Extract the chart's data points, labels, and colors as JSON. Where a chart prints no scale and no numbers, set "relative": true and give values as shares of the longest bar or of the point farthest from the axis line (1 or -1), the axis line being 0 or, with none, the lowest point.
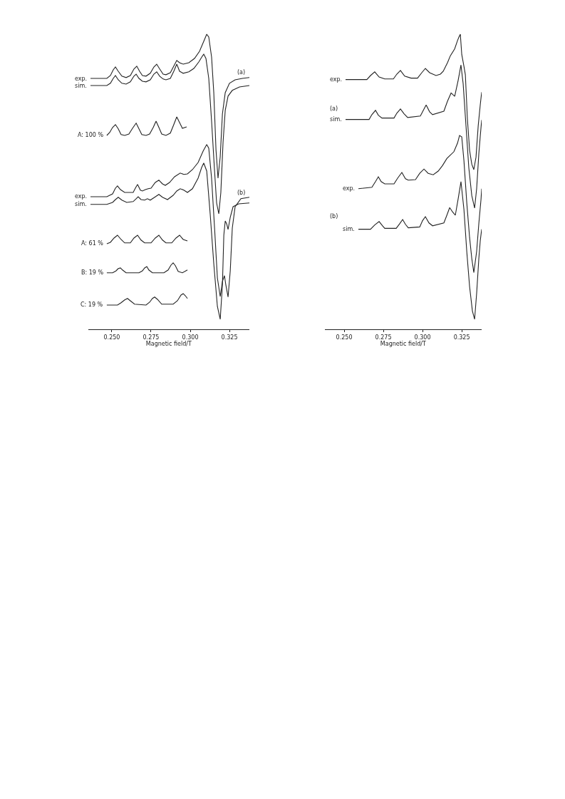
{
  "chart_data": [
    {
      "type": "line",
      "relative": true,
      "xlabel": "Magnetic field/T",
      "tick_labels": "x",
      "xlim": [
        0.2349,
        0.3377
      ],
      "xticks": [
        {
          "value": 0.25,
          "label": "0.250"
        },
        {
          "value": 0.275,
          "label": "0.275"
        },
        {
          "value": 0.3,
          "label": "0.300"
        },
        {
          "value": 0.325,
          "label": "0.325"
        }
      ],
      "annotations": [
        "(a)",
        "(b)"
      ],
      "series": [
        {
          "name": "exp.",
          "color": "#222222",
          "x": [
            0.2364,
            0.2468,
            0.2491,
            0.2509,
            0.2523,
            0.2541,
            0.2564,
            0.2591,
            0.2618,
            0.2641,
            0.2659,
            0.2677,
            0.2695,
            0.2718,
            0.2745,
            0.2768,
            0.2786,
            0.2805,
            0.2827,
            0.2845,
            0.2873,
            0.2895,
            0.2914,
            0.2932,
            0.2955,
            0.2991,
            0.3027,
            0.3059,
            0.3086,
            0.3105,
            0.3118,
            0.3136,
            0.315,
            0.3164,
            0.3177,
            0.3191,
            0.3205,
            0.3223,
            0.325,
            0.3286,
            0.3332,
            0.3377
          ],
          "values": [
            0.845,
            0.845,
            0.855,
            0.875,
            0.885,
            0.87,
            0.853,
            0.848,
            0.855,
            0.878,
            0.888,
            0.87,
            0.855,
            0.853,
            0.863,
            0.885,
            0.895,
            0.878,
            0.86,
            0.858,
            0.865,
            0.888,
            0.908,
            0.9,
            0.895,
            0.9,
            0.915,
            0.94,
            0.975,
            1.0,
            0.99,
            0.92,
            0.795,
            0.595,
            0.495,
            0.57,
            0.72,
            0.795,
            0.828,
            0.84,
            0.845,
            0.848
          ]
        },
        {
          "name": "sim.",
          "color": "#222222",
          "x": [
            0.2364,
            0.2468,
            0.2491,
            0.2509,
            0.2523,
            0.2541,
            0.2564,
            0.2591,
            0.2618,
            0.2641,
            0.2655,
            0.2673,
            0.2695,
            0.2718,
            0.2745,
            0.2768,
            0.2786,
            0.2805,
            0.2827,
            0.2845,
            0.2873,
            0.2895,
            0.2914,
            0.2932,
            0.2955,
            0.2991,
            0.3023,
            0.3055,
            0.3077,
            0.3086,
            0.31,
            0.3118,
            0.3136,
            0.3155,
            0.3168,
            0.3182,
            0.3195,
            0.3209,
            0.3223,
            0.3241,
            0.3268,
            0.3314,
            0.3377
          ],
          "values": [
            0.82,
            0.82,
            0.828,
            0.845,
            0.855,
            0.84,
            0.828,
            0.825,
            0.833,
            0.853,
            0.86,
            0.845,
            0.835,
            0.833,
            0.84,
            0.86,
            0.868,
            0.853,
            0.843,
            0.84,
            0.845,
            0.87,
            0.895,
            0.87,
            0.863,
            0.868,
            0.88,
            0.903,
            0.923,
            0.93,
            0.915,
            0.845,
            0.695,
            0.52,
            0.408,
            0.37,
            0.445,
            0.62,
            0.733,
            0.783,
            0.803,
            0.815,
            0.82
          ]
        },
        {
          "name": "A: 100 %",
          "color": "#222222",
          "x": [
            0.2468,
            0.2486,
            0.2505,
            0.2523,
            0.2541,
            0.2559,
            0.2582,
            0.2609,
            0.2632,
            0.2655,
            0.2673,
            0.2691,
            0.2718,
            0.2741,
            0.2764,
            0.2782,
            0.28,
            0.2818,
            0.2845,
            0.2873,
            0.2895,
            0.2914,
            0.2932,
            0.295,
            0.2977
          ],
          "values": [
            0.645,
            0.655,
            0.673,
            0.683,
            0.668,
            0.648,
            0.645,
            0.65,
            0.67,
            0.688,
            0.668,
            0.648,
            0.645,
            0.65,
            0.673,
            0.695,
            0.673,
            0.65,
            0.645,
            0.653,
            0.683,
            0.71,
            0.69,
            0.67,
            0.675
          ]
        },
        {
          "name": "exp.",
          "color": "#222222",
          "x": [
            0.2364,
            0.2468,
            0.2505,
            0.2523,
            0.2536,
            0.2555,
            0.2582,
            0.2636,
            0.265,
            0.2664,
            0.2682,
            0.2695,
            0.2714,
            0.2732,
            0.275,
            0.2777,
            0.28,
            0.2823,
            0.2841,
            0.2868,
            0.29,
            0.2936,
            0.2959,
            0.2982,
            0.3014,
            0.305,
            0.3082,
            0.3105,
            0.3118,
            0.3136,
            0.3155,
            0.3173,
            0.3191,
            0.3205,
            0.3218,
            0.3227,
            0.3241,
            0.3255,
            0.3268,
            0.3286,
            0.3323,
            0.3377
          ],
          "values": [
            0.43,
            0.43,
            0.44,
            0.46,
            0.468,
            0.455,
            0.445,
            0.445,
            0.46,
            0.473,
            0.453,
            0.45,
            0.455,
            0.458,
            0.46,
            0.48,
            0.488,
            0.475,
            0.47,
            0.48,
            0.5,
            0.513,
            0.508,
            0.51,
            0.525,
            0.55,
            0.59,
            0.613,
            0.6,
            0.495,
            0.32,
            0.145,
            0.08,
            0.133,
            0.153,
            0.12,
            0.078,
            0.17,
            0.32,
            0.395,
            0.423,
            0.428
          ]
        },
        {
          "name": "sim.",
          "color": "#222222",
          "x": [
            0.2364,
            0.2468,
            0.2505,
            0.2523,
            0.2541,
            0.2564,
            0.2595,
            0.2636,
            0.2655,
            0.2668,
            0.2686,
            0.2709,
            0.2727,
            0.2745,
            0.2773,
            0.28,
            0.2823,
            0.2855,
            0.2891,
            0.2914,
            0.2936,
            0.2959,
            0.2982,
            0.3014,
            0.305,
            0.3073,
            0.3086,
            0.3105,
            0.3127,
            0.315,
            0.3173,
            0.3191,
            0.3205,
            0.3214,
            0.3223,
            0.3232,
            0.3241,
            0.3255,
            0.3273,
            0.3309,
            0.3377
          ],
          "values": [
            0.403,
            0.403,
            0.41,
            0.42,
            0.428,
            0.418,
            0.41,
            0.413,
            0.423,
            0.43,
            0.42,
            0.418,
            0.423,
            0.418,
            0.428,
            0.438,
            0.428,
            0.42,
            0.435,
            0.45,
            0.458,
            0.453,
            0.445,
            0.458,
            0.495,
            0.533,
            0.548,
            0.52,
            0.37,
            0.195,
            0.045,
            0,
            0.12,
            0.295,
            0.345,
            0.335,
            0.315,
            0.358,
            0.395,
            0.405,
            0.408
          ]
        },
        {
          "name": "A: 61 %",
          "color": "#222222",
          "x": [
            0.2468,
            0.2491,
            0.2514,
            0.2536,
            0.2559,
            0.2582,
            0.2618,
            0.2641,
            0.2664,
            0.2686,
            0.2709,
            0.275,
            0.2777,
            0.28,
            0.2823,
            0.2845,
            0.2882,
            0.2909,
            0.2932,
            0.2955,
            0.2982
          ],
          "values": [
            0.265,
            0.27,
            0.285,
            0.295,
            0.28,
            0.268,
            0.268,
            0.285,
            0.295,
            0.278,
            0.268,
            0.268,
            0.285,
            0.295,
            0.278,
            0.268,
            0.268,
            0.285,
            0.295,
            0.28,
            0.275
          ]
        },
        {
          "name": "B: 19 %",
          "color": "#222222",
          "x": [
            0.2468,
            0.2505,
            0.2527,
            0.2541,
            0.2555,
            0.2568,
            0.2591,
            0.2673,
            0.2695,
            0.2709,
            0.2723,
            0.2736,
            0.2759,
            0.2832,
            0.2859,
            0.2877,
            0.2891,
            0.2905,
            0.2923,
            0.295,
            0.2982
          ],
          "values": [
            0.163,
            0.163,
            0.17,
            0.178,
            0.18,
            0.173,
            0.163,
            0.163,
            0.17,
            0.18,
            0.185,
            0.173,
            0.163,
            0.163,
            0.173,
            0.19,
            0.198,
            0.188,
            0.168,
            0.163,
            0.173
          ]
        },
        {
          "name": "C: 19 %",
          "color": "#222222",
          "x": [
            0.2468,
            0.2536,
            0.2559,
            0.2582,
            0.26,
            0.2618,
            0.2645,
            0.2718,
            0.2741,
            0.2759,
            0.2773,
            0.2791,
            0.2818,
            0.2891,
            0.2918,
            0.2941,
            0.2955,
            0.2968,
            0.2982
          ],
          "values": [
            0.05,
            0.05,
            0.058,
            0.068,
            0.073,
            0.065,
            0.053,
            0.05,
            0.06,
            0.073,
            0.078,
            0.07,
            0.053,
            0.053,
            0.065,
            0.085,
            0.09,
            0.083,
            0.073
          ]
        }
      ]
    },
    {
      "type": "line",
      "relative": true,
      "xlabel": "Magnetic field/T",
      "tick_labels": "x",
      "xlim": [
        0.2376,
        0.3377
      ],
      "xticks": [
        {
          "value": 0.25,
          "label": "0.250"
        },
        {
          "value": 0.275,
          "label": "0.275"
        },
        {
          "value": 0.3,
          "label": "0.300"
        },
        {
          "value": 0.325,
          "label": "0.325"
        }
      ],
      "annotations": [
        "(a)",
        "(b)"
      ],
      "series": [
        {
          "name": "exp.",
          "color": "#222222",
          "x": [
            0.2509,
            0.2645,
            0.2668,
            0.2695,
            0.2723,
            0.2759,
            0.2814,
            0.2836,
            0.2859,
            0.2886,
            0.2927,
            0.2968,
            0.2995,
            0.3018,
            0.3045,
            0.3086,
            0.3114,
            0.3132,
            0.3159,
            0.3177,
            0.3205,
            0.3223,
            0.3232,
            0.3241,
            0.325,
            0.3264,
            0.3273,
            0.3286,
            0.33,
            0.3314,
            0.3327,
            0.3341,
            0.3355,
            0.3368,
            0.3377
          ],
          "values": [
            0.841,
            0.841,
            0.855,
            0.868,
            0.85,
            0.843,
            0.843,
            0.86,
            0.873,
            0.853,
            0.846,
            0.846,
            0.865,
            0.88,
            0.865,
            0.855,
            0.86,
            0.87,
            0.9,
            0.924,
            0.949,
            0.978,
            0.99,
            1.0,
            0.929,
            0.887,
            0.858,
            0.703,
            0.593,
            0.544,
            0.525,
            0.569,
            0.679,
            0.752,
            0.797
          ]
        },
        {
          "name": "sim.",
          "color": "#222222",
          "x": [
            0.2509,
            0.2659,
            0.2677,
            0.27,
            0.2718,
            0.2741,
            0.2818,
            0.2836,
            0.2859,
            0.2882,
            0.2905,
            0.2986,
            0.3005,
            0.3023,
            0.3045,
            0.3064,
            0.3136,
            0.3159,
            0.3182,
            0.3205,
            0.3227,
            0.3245,
            0.3259,
            0.3277,
            0.3295,
            0.3314,
            0.3332,
            0.3345,
            0.3359,
            0.3368,
            0.3377
          ],
          "values": [
            0.701,
            0.701,
            0.718,
            0.733,
            0.716,
            0.706,
            0.706,
            0.723,
            0.738,
            0.721,
            0.708,
            0.713,
            0.733,
            0.752,
            0.728,
            0.718,
            0.73,
            0.765,
            0.794,
            0.782,
            0.838,
            0.892,
            0.826,
            0.679,
            0.532,
            0.434,
            0.39,
            0.458,
            0.581,
            0.642,
            0.699
          ]
        },
        {
          "name": "exp.",
          "color": "#222222",
          "x": [
            0.2591,
            0.2677,
            0.27,
            0.2718,
            0.2736,
            0.2759,
            0.2818,
            0.2841,
            0.2868,
            0.2891,
            0.2909,
            0.2955,
            0.2982,
            0.3009,
            0.3036,
            0.3068,
            0.31,
            0.3127,
            0.3155,
            0.32,
            0.3223,
            0.3236,
            0.325,
            0.3264,
            0.3282,
            0.33,
            0.3314,
            0.3327,
            0.3345,
            0.3359,
            0.3373,
            0.3377
          ],
          "values": [
            0.458,
            0.463,
            0.483,
            0.5,
            0.483,
            0.475,
            0.475,
            0.495,
            0.515,
            0.493,
            0.488,
            0.49,
            0.512,
            0.527,
            0.512,
            0.507,
            0.52,
            0.539,
            0.564,
            0.588,
            0.618,
            0.645,
            0.64,
            0.556,
            0.409,
            0.287,
            0.213,
            0.164,
            0.238,
            0.336,
            0.422,
            0.458
          ]
        },
        {
          "name": "sim.",
          "color": "#222222",
          "x": [
            0.2591,
            0.2668,
            0.2695,
            0.2723,
            0.2745,
            0.2759,
            0.2832,
            0.2855,
            0.2873,
            0.2891,
            0.2909,
            0.2982,
            0.3,
            0.3018,
            0.3041,
            0.3064,
            0.3136,
            0.3155,
            0.3173,
            0.3191,
            0.3209,
            0.3227,
            0.3245,
            0.3264,
            0.3282,
            0.33,
            0.3318,
            0.3332,
            0.3345,
            0.3359,
            0.3368,
            0.3377
          ],
          "values": [
            0.316,
            0.316,
            0.331,
            0.343,
            0.328,
            0.319,
            0.319,
            0.336,
            0.35,
            0.333,
            0.321,
            0.324,
            0.346,
            0.36,
            0.338,
            0.328,
            0.338,
            0.365,
            0.392,
            0.377,
            0.365,
            0.422,
            0.483,
            0.385,
            0.238,
            0.115,
            0.029,
            0,
            0.091,
            0.213,
            0.275,
            0.316
          ]
        }
      ]
    }
  ]
}
